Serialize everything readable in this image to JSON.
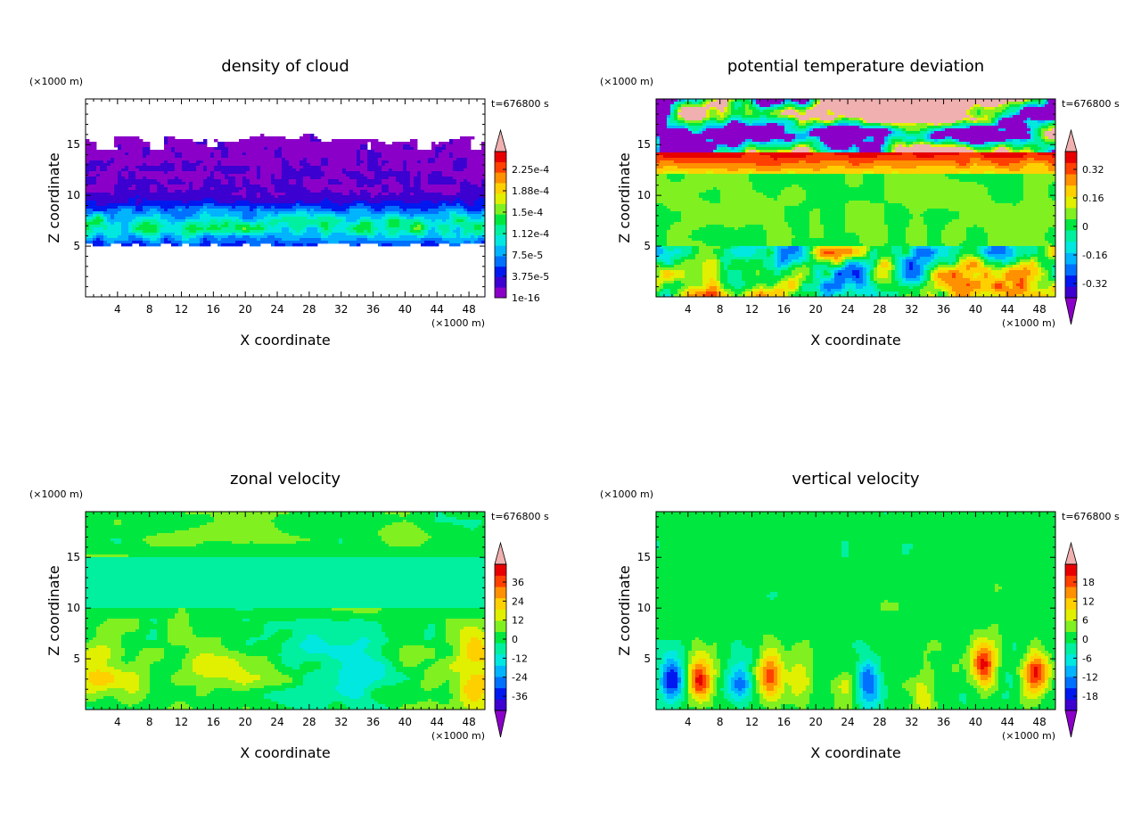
{
  "chart_data": [
    {
      "type": "heatmap",
      "title": "density of cloud",
      "xlabel": "X coordinate",
      "ylabel": "Z coordinate",
      "x_unit": "(×1000 m)",
      "y_unit": "(×1000 m)",
      "time_label": "t=676800 s",
      "xlim": [
        0,
        50
      ],
      "ylim": [
        0,
        19.5
      ],
      "x_ticks": [
        4,
        8,
        12,
        16,
        20,
        24,
        28,
        32,
        36,
        40,
        44,
        48
      ],
      "y_ticks": [
        5,
        10,
        15
      ],
      "colorbar": {
        "labels": [
          "2.25e-4",
          "1.88e-4",
          "1.5e-4",
          "1.12e-4",
          "7.5e-5",
          "3.75e-5",
          "1e-16"
        ],
        "under_arrow": false
      },
      "notes_visible": "cloud layer between z≈5 and z≈16, densest band near z≈6–8"
    },
    {
      "type": "heatmap",
      "title": "potential temperature deviation",
      "xlabel": "X coordinate",
      "ylabel": "Z coordinate",
      "x_unit": "(×1000 m)",
      "y_unit": "(×1000 m)",
      "time_label": "t=676800 s",
      "xlim": [
        0,
        50
      ],
      "ylim": [
        0,
        19.5
      ],
      "x_ticks": [
        4,
        8,
        12,
        16,
        20,
        24,
        28,
        32,
        36,
        40,
        44,
        48
      ],
      "y_ticks": [
        5,
        10,
        15
      ],
      "colorbar": {
        "labels": [
          "0.32",
          "0.16",
          "0",
          "-0.16",
          "-0.32"
        ],
        "under_arrow": true
      }
    },
    {
      "type": "heatmap",
      "title": "zonal velocity",
      "xlabel": "X coordinate",
      "ylabel": "Z coordinate",
      "x_unit": "(×1000 m)",
      "y_unit": "(×1000 m)",
      "time_label": "t=676800 s",
      "xlim": [
        0,
        50
      ],
      "ylim": [
        0,
        19.5
      ],
      "x_ticks": [
        4,
        8,
        12,
        16,
        20,
        24,
        28,
        32,
        36,
        40,
        44,
        48
      ],
      "y_ticks": [
        5,
        10,
        15
      ],
      "colorbar": {
        "labels": [
          "36",
          "24",
          "12",
          "0",
          "-12",
          "-24",
          "-36"
        ],
        "under_arrow": true
      }
    },
    {
      "type": "heatmap",
      "title": "vertical velocity",
      "xlabel": "X coordinate",
      "ylabel": "Z coordinate",
      "x_unit": "(×1000 m)",
      "y_unit": "(×1000 m)",
      "time_label": "t=676800 s",
      "xlim": [
        0,
        50
      ],
      "ylim": [
        0,
        19.5
      ],
      "x_ticks": [
        4,
        8,
        12,
        16,
        20,
        24,
        28,
        32,
        36,
        40,
        44,
        48
      ],
      "y_ticks": [
        5,
        10,
        15
      ],
      "colorbar": {
        "labels": [
          "18",
          "12",
          "6",
          "0",
          "-6",
          "-12",
          "-18"
        ],
        "under_arrow": true
      }
    }
  ],
  "colors": {
    "palette": [
      "#8b00c8",
      "#3c00d0",
      "#0018f0",
      "#0070ff",
      "#00b4ff",
      "#00e8e0",
      "#00f0a0",
      "#00e840",
      "#80f020",
      "#e0f000",
      "#ffd000",
      "#ff9000",
      "#ff4000",
      "#e80000",
      "#f0b0b0"
    ]
  }
}
